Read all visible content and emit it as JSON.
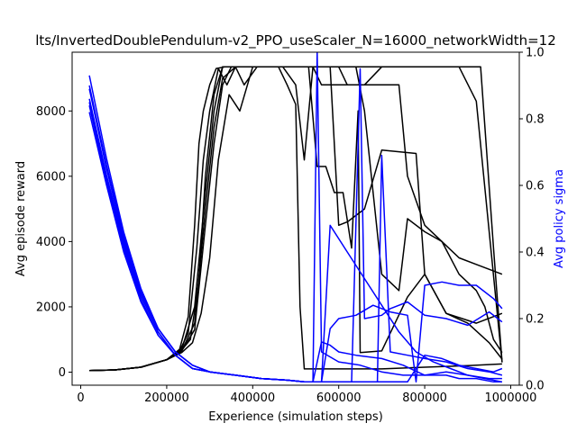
{
  "chart_data": {
    "type": "line",
    "title": "lts/InvertedDoublePendulum-v2_PPO_useScaler_N=16000_networkWidth=12",
    "xlabel": "Experience (simulation steps)",
    "ylabel_left": "Avg episode reward",
    "ylabel_right": "Avg policy sigma",
    "xlim": [
      -20000,
      1020000
    ],
    "ylim_left": [
      -400,
      9800
    ],
    "ylim_right": [
      0,
      1.0
    ],
    "x_ticks": [
      0,
      200000,
      400000,
      600000,
      800000,
      1000000
    ],
    "x_tick_labels": [
      "0",
      "200000",
      "400000",
      "600000",
      "800000",
      "1000000"
    ],
    "y_left_ticks": [
      0,
      2000,
      4000,
      6000,
      8000
    ],
    "y_left_tick_labels": [
      "0",
      "2000",
      "4000",
      "6000",
      "8000"
    ],
    "y_right_ticks": [
      0.0,
      0.2,
      0.4,
      0.6,
      0.8,
      1.0
    ],
    "y_right_tick_labels": [
      "0.0",
      "0.2",
      "0.4",
      "0.6",
      "0.8",
      "1.0"
    ],
    "colors": {
      "reward": "#000000",
      "sigma": "#0000ff",
      "ylabel_right": "#0000ff"
    },
    "grid": false,
    "reward_series": [
      {
        "axis": "left",
        "color": "#000000",
        "x": [
          20000,
          80000,
          140000,
          200000,
          230000,
          250000,
          265000,
          275000,
          285000,
          300000,
          315000,
          335000,
          350000,
          370000,
          390000,
          420000,
          450000,
          480000,
          500000,
          520000,
          540000,
          560000,
          580000,
          620000,
          660000,
          700000,
          760000,
          820000,
          880000,
          920000,
          980000
        ],
        "y": [
          50,
          70,
          150,
          380,
          700,
          1700,
          4500,
          7000,
          8000,
          8800,
          9300,
          9350,
          9350,
          9350,
          9350,
          9350,
          9350,
          9350,
          9350,
          9350,
          9350,
          9350,
          9350,
          9350,
          9350,
          9350,
          9350,
          9350,
          9350,
          8300,
          300
        ]
      },
      {
        "axis": "left",
        "color": "#000000",
        "x": [
          20000,
          80000,
          140000,
          200000,
          230000,
          250000,
          270000,
          285000,
          300000,
          320000,
          340000,
          360000,
          380000,
          410000,
          440000,
          470000,
          500000,
          520000,
          540000,
          560000,
          580000,
          600000,
          630000,
          660000,
          700000,
          760000,
          820000,
          880000,
          930000,
          960000,
          980000
        ],
        "y": [
          50,
          70,
          150,
          380,
          650,
          1200,
          3800,
          6500,
          8000,
          9300,
          8800,
          9350,
          8800,
          9350,
          9350,
          9350,
          8800,
          6500,
          9350,
          8800,
          8800,
          8800,
          8800,
          8800,
          9350,
          9350,
          9350,
          9350,
          9350,
          3800,
          300
        ]
      },
      {
        "axis": "left",
        "color": "#000000",
        "x": [
          20000,
          80000,
          140000,
          200000,
          230000,
          255000,
          275000,
          290000,
          310000,
          330000,
          350000,
          370000,
          400000,
          430000,
          460000,
          480000,
          500000,
          510000,
          520000,
          540000,
          600000,
          700000,
          800000,
          900000,
          980000
        ],
        "y": [
          50,
          70,
          150,
          380,
          600,
          1000,
          2800,
          6000,
          8500,
          9350,
          9350,
          9350,
          9350,
          9350,
          9350,
          8800,
          8200,
          2000,
          100,
          100,
          100,
          100,
          150,
          200,
          250
        ]
      },
      {
        "axis": "left",
        "color": "#000000",
        "x": [
          20000,
          80000,
          140000,
          200000,
          235000,
          260000,
          280000,
          300000,
          320000,
          345000,
          370000,
          400000,
          430000,
          460000,
          490000,
          510000,
          530000,
          550000,
          570000,
          590000,
          610000,
          630000,
          645000,
          650000,
          700000,
          760000,
          800000,
          850000,
          920000,
          980000
        ],
        "y": [
          50,
          70,
          150,
          380,
          600,
          900,
          1800,
          3500,
          6500,
          8500,
          8000,
          9350,
          9350,
          9350,
          9350,
          9350,
          9350,
          6300,
          6300,
          5500,
          5500,
          3800,
          8000,
          600,
          650,
          2300,
          3000,
          1800,
          1500,
          1800
        ]
      },
      {
        "axis": "left",
        "color": "#000000",
        "x": [
          20000,
          80000,
          140000,
          200000,
          235000,
          265000,
          290000,
          310000,
          330000,
          360000,
          390000,
          420000,
          440000,
          460000,
          480000,
          500000,
          520000,
          540000,
          570000,
          600000,
          620000,
          640000,
          660000,
          700000,
          740000,
          760000,
          800000,
          840000,
          880000,
          920000,
          980000
        ],
        "y": [
          50,
          70,
          150,
          380,
          650,
          1500,
          5000,
          7500,
          9000,
          9350,
          9350,
          9350,
          9350,
          9350,
          9350,
          9350,
          9350,
          9350,
          9350,
          9350,
          8800,
          8800,
          8800,
          8800,
          8800,
          6000,
          4500,
          4000,
          3500,
          3300,
          3000
        ]
      },
      {
        "axis": "left",
        "color": "#000000",
        "x": [
          20000,
          80000,
          140000,
          200000,
          235000,
          265000,
          290000,
          310000,
          330000,
          360000,
          390000,
          420000,
          450000,
          480000,
          510000,
          540000,
          560000,
          580000,
          600000,
          640000,
          660000,
          700000,
          740000,
          760000,
          800000,
          840000,
          880000,
          920000,
          940000,
          960000,
          980000
        ],
        "y": [
          50,
          70,
          150,
          380,
          700,
          2000,
          5500,
          8000,
          9350,
          9350,
          9350,
          9350,
          9350,
          9350,
          9350,
          9350,
          9350,
          9350,
          9350,
          9350,
          8000,
          3000,
          2500,
          4700,
          4300,
          4000,
          3000,
          2500,
          2000,
          1000,
          600
        ]
      },
      {
        "axis": "left",
        "color": "#000000",
        "x": [
          20000,
          80000,
          140000,
          200000,
          235000,
          265000,
          290000,
          310000,
          330000,
          350000,
          370000,
          390000,
          410000,
          440000,
          470000,
          500000,
          520000,
          540000,
          560000,
          580000,
          600000,
          620000,
          640000,
          660000,
          700000,
          780000,
          800000,
          850000,
          900000,
          950000,
          980000
        ],
        "y": [
          50,
          70,
          150,
          380,
          650,
          1300,
          4500,
          7000,
          8800,
          9350,
          9350,
          9350,
          9350,
          9350,
          9350,
          9350,
          9350,
          9350,
          9350,
          9350,
          4500,
          4600,
          4800,
          5000,
          6800,
          6700,
          3000,
          1800,
          1500,
          900,
          400
        ]
      }
    ],
    "sigma_series": [
      {
        "axis": "right",
        "color": "#0000ff",
        "x": [
          20000,
          60000,
          100000,
          140000,
          180000,
          220000,
          260000,
          300000,
          360000,
          420000,
          480000,
          520000,
          540000,
          550000,
          560000,
          600000,
          650000,
          700000,
          750000,
          800000,
          850000,
          900000,
          950000,
          980000
        ],
        "y": [
          0.93,
          0.68,
          0.46,
          0.29,
          0.17,
          0.1,
          0.06,
          0.04,
          0.03,
          0.02,
          0.015,
          0.01,
          0.01,
          1.0,
          0.1,
          0.07,
          0.06,
          0.04,
          0.03,
          0.03,
          0.04,
          0.03,
          0.02,
          0.02
        ]
      },
      {
        "axis": "right",
        "color": "#0000ff",
        "x": [
          20000,
          60000,
          100000,
          140000,
          180000,
          220000,
          260000,
          300000,
          360000,
          420000,
          480000,
          520000,
          560000,
          600000,
          630000,
          650000,
          660000,
          700000,
          720000,
          760000,
          800000,
          850000,
          900000,
          950000,
          980000
        ],
        "y": [
          0.9,
          0.66,
          0.45,
          0.28,
          0.17,
          0.1,
          0.06,
          0.04,
          0.03,
          0.02,
          0.015,
          0.01,
          0.01,
          0.01,
          0.01,
          0.95,
          0.2,
          0.21,
          0.23,
          0.25,
          0.21,
          0.2,
          0.18,
          0.22,
          0.19
        ]
      },
      {
        "axis": "right",
        "color": "#0000ff",
        "x": [
          20000,
          60000,
          100000,
          140000,
          180000,
          220000,
          260000,
          300000,
          360000,
          420000,
          480000,
          520000,
          560000,
          580000,
          620000,
          660000,
          690000,
          700000,
          720000,
          760000,
          800000,
          850000,
          900000,
          950000,
          980000
        ],
        "y": [
          0.89,
          0.65,
          0.44,
          0.28,
          0.17,
          0.1,
          0.06,
          0.04,
          0.03,
          0.02,
          0.015,
          0.01,
          0.01,
          0.01,
          0.01,
          0.01,
          0.01,
          0.69,
          0.1,
          0.09,
          0.08,
          0.07,
          0.05,
          0.04,
          0.03
        ]
      },
      {
        "axis": "right",
        "color": "#0000ff",
        "x": [
          20000,
          60000,
          100000,
          140000,
          180000,
          220000,
          260000,
          300000,
          360000,
          420000,
          480000,
          520000,
          540000,
          560000,
          580000,
          600000,
          640000,
          700000,
          750000,
          800000,
          850000,
          880000,
          920000,
          960000,
          980000
        ],
        "y": [
          0.86,
          0.63,
          0.43,
          0.27,
          0.16,
          0.09,
          0.05,
          0.04,
          0.03,
          0.02,
          0.015,
          0.01,
          0.01,
          0.13,
          0.12,
          0.1,
          0.09,
          0.08,
          0.06,
          0.03,
          0.03,
          0.02,
          0.02,
          0.01,
          0.01
        ]
      },
      {
        "axis": "right",
        "color": "#0000ff",
        "x": [
          20000,
          60000,
          100000,
          140000,
          180000,
          220000,
          260000,
          300000,
          360000,
          420000,
          480000,
          520000,
          560000,
          580000,
          600000,
          640000,
          680000,
          720000,
          760000,
          780000,
          800000,
          840000,
          880000,
          920000,
          960000,
          980000
        ],
        "y": [
          0.85,
          0.62,
          0.42,
          0.27,
          0.16,
          0.09,
          0.05,
          0.04,
          0.03,
          0.02,
          0.015,
          0.01,
          0.01,
          0.17,
          0.2,
          0.21,
          0.24,
          0.22,
          0.21,
          0.01,
          0.3,
          0.31,
          0.3,
          0.3,
          0.26,
          0.23
        ]
      },
      {
        "axis": "right",
        "color": "#0000ff",
        "x": [
          20000,
          60000,
          100000,
          140000,
          180000,
          220000,
          260000,
          300000,
          360000,
          420000,
          480000,
          520000,
          560000,
          580000,
          620000,
          660000,
          700000,
          740000,
          780000,
          820000,
          860000,
          900000,
          940000,
          980000
        ],
        "y": [
          0.84,
          0.61,
          0.41,
          0.26,
          0.15,
          0.09,
          0.05,
          0.04,
          0.03,
          0.02,
          0.015,
          0.01,
          0.01,
          0.48,
          0.4,
          0.32,
          0.24,
          0.16,
          0.1,
          0.07,
          0.05,
          0.03,
          0.02,
          0.01
        ]
      },
      {
        "axis": "right",
        "color": "#0000ff",
        "x": [
          20000,
          60000,
          100000,
          140000,
          180000,
          220000,
          260000,
          300000,
          360000,
          420000,
          480000,
          520000,
          560000,
          600000,
          640000,
          680000,
          720000,
          760000,
          800000,
          840000,
          880000,
          920000,
          960000,
          980000
        ],
        "y": [
          0.82,
          0.6,
          0.4,
          0.25,
          0.15,
          0.09,
          0.05,
          0.04,
          0.03,
          0.02,
          0.015,
          0.01,
          0.01,
          0.01,
          0.01,
          0.01,
          0.01,
          0.01,
          0.09,
          0.08,
          0.06,
          0.05,
          0.04,
          0.05
        ]
      }
    ]
  }
}
